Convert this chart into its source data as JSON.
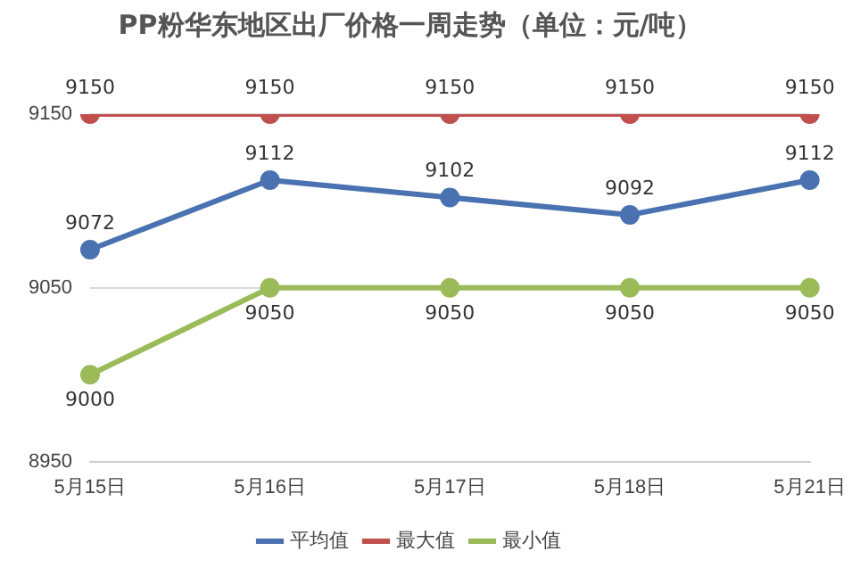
{
  "chart_data": {
    "type": "line",
    "title": "PP粉华东地区出厂价格一周走势（单位：元/吨）",
    "categories": [
      "5月15日",
      "5月16日",
      "5月17日",
      "5月18日",
      "5月21日"
    ],
    "series": [
      {
        "name": "平均值",
        "color": "#4a72b0",
        "values": [
          9072,
          9112,
          9102,
          9092,
          9112
        ]
      },
      {
        "name": "最大值",
        "color": "#c0504d",
        "values": [
          9150,
          9150,
          9150,
          9150,
          9150
        ]
      },
      {
        "name": "最小值",
        "color": "#9bbb59",
        "values": [
          9000,
          9050,
          9050,
          9050,
          9050
        ]
      }
    ],
    "ylim": [
      8950,
      9150
    ],
    "yticks": [
      8950,
      9050,
      9150
    ],
    "grid": "y",
    "legend": "bottom",
    "marker": "circle",
    "line_style": "solid",
    "data_labels": true
  }
}
